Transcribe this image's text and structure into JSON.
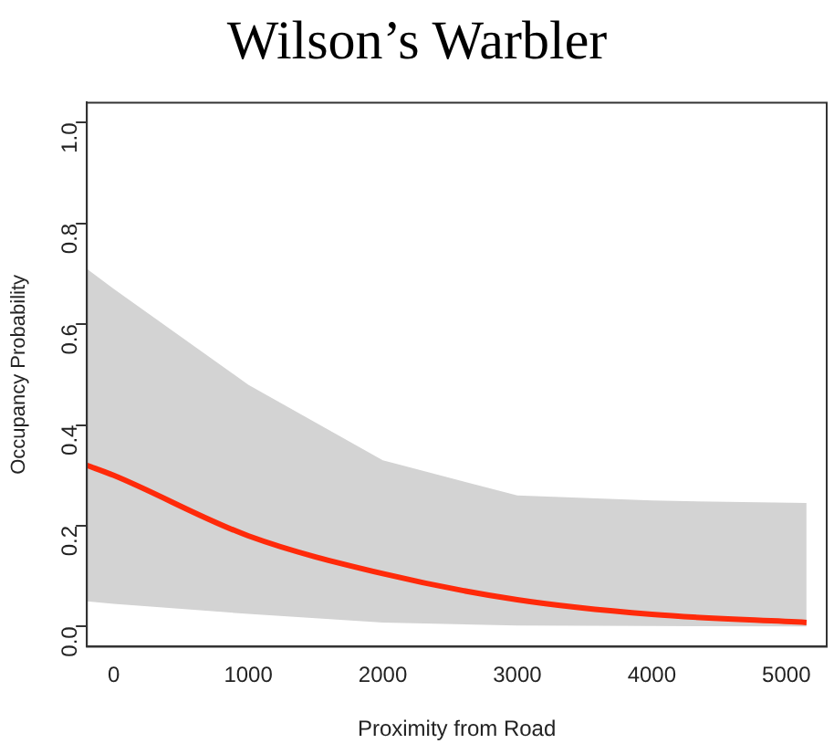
{
  "chart_data": {
    "type": "line",
    "title": "Wilson’s Warbler",
    "xlabel": "Proximity from Road",
    "ylabel": "Occupancy Probability",
    "xlim": [
      -200,
      5300
    ],
    "xticks": [
      0,
      1000,
      2000,
      3000,
      4000,
      5000
    ],
    "ylim": [
      -0.04,
      1.04
    ],
    "yticks": [
      {
        "value": 0,
        "label": "0.0"
      },
      0.2,
      0.4,
      0.6,
      0.8,
      {
        "value": 1,
        "label": "1.0"
      }
    ],
    "grid": false,
    "legend": false,
    "marker": "none",
    "line_style": "solid",
    "series": [
      {
        "color": "#ff2a0a",
        "x": [
          -200,
          0,
          1000,
          2000,
          3000,
          4000,
          5150
        ],
        "values": [
          0.32,
          0.3,
          0.18,
          0.105,
          0.053,
          0.024,
          0.008
        ],
        "lower": [
          0.05,
          0.045,
          0.025,
          0.008,
          0.002,
          0.001,
          0.0
        ],
        "upper": [
          0.71,
          0.67,
          0.48,
          0.33,
          0.26,
          0.25,
          0.245
        ]
      }
    ]
  }
}
